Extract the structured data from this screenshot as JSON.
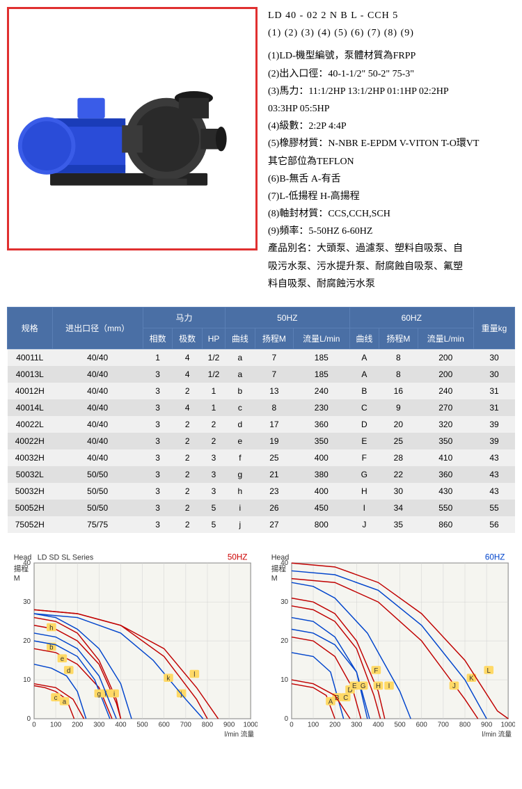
{
  "model_line1": "LD 40 - 02 2  N  B  L  -  CCH   5",
  "model_line2": "(1) (2)  (3) (4) (5) (6)  (7)   (8)    (9)",
  "desc_lines": [
    "(1)LD-機型編號，泵體材質為FRPP",
    "(2)出入口徑：40-1-1/2\"  50-2\"  75-3\"",
    "(3)馬力：11:1/2HP 13:1/2HP 01:1HP 02:2HP",
    "03:3HP 05:5HP",
    "(4)級數：2:2P 4:4P",
    "(5)橡膠材質：N-NBR E-EPDM V-VITON T-O環VT",
    "其它部位為TEFLON",
    "(6)B-無舌 A-有舌",
    "(7)L-低揚程 H-高揚程",
    "(8)軸封材質：CCS,CCH,SCH",
    "(9)頻率：5-50HZ 6-60HZ",
    "產品別名：大頭泵、過濾泵、塑料自吸泵、自",
    "吸污水泵、污水提升泵、耐腐蝕自吸泵、氟塑",
    "料自吸泵、耐腐蝕污水泵"
  ],
  "table": {
    "head_group": [
      {
        "label": "规格",
        "rowspan": 2
      },
      {
        "label": "进出口径（mm）",
        "rowspan": 2
      },
      {
        "label": "马力",
        "colspan": 3
      },
      {
        "label": "50HZ",
        "colspan": 3
      },
      {
        "label": "60HZ",
        "colspan": 3
      },
      {
        "label": "重量kg",
        "rowspan": 2
      }
    ],
    "head_sub": [
      "相数",
      "极数",
      "HP",
      "曲线",
      "扬程M",
      "流量L/min",
      "曲线",
      "扬程M",
      "流量L/min"
    ],
    "rows": [
      [
        "40011L",
        "40/40",
        "1",
        "4",
        "1/2",
        "a",
        "7",
        "185",
        "A",
        "8",
        "200",
        "30"
      ],
      [
        "40013L",
        "40/40",
        "3",
        "4",
        "1/2",
        "a",
        "7",
        "185",
        "A",
        "8",
        "200",
        "30"
      ],
      [
        "40012H",
        "40/40",
        "3",
        "2",
        "1",
        "b",
        "13",
        "240",
        "B",
        "16",
        "240",
        "31"
      ],
      [
        "40014L",
        "40/40",
        "3",
        "4",
        "1",
        "c",
        "8",
        "230",
        "C",
        "9",
        "270",
        "31"
      ],
      [
        "40022L",
        "40/40",
        "3",
        "2",
        "2",
        "d",
        "17",
        "360",
        "D",
        "20",
        "320",
        "39"
      ],
      [
        "40022H",
        "40/40",
        "3",
        "2",
        "2",
        "e",
        "19",
        "350",
        "E",
        "25",
        "350",
        "39"
      ],
      [
        "40032H",
        "40/40",
        "3",
        "2",
        "3",
        "f",
        "25",
        "400",
        "F",
        "28",
        "410",
        "43"
      ],
      [
        "50032L",
        "50/50",
        "3",
        "2",
        "3",
        "g",
        "21",
        "380",
        "G",
        "22",
        "360",
        "43"
      ],
      [
        "50032H",
        "50/50",
        "3",
        "2",
        "3",
        "h",
        "23",
        "400",
        "H",
        "30",
        "430",
        "43"
      ],
      [
        "50052H",
        "50/50",
        "3",
        "2",
        "5",
        "i",
        "26",
        "450",
        "I",
        "34",
        "550",
        "55"
      ],
      [
        "75052H",
        "75/75",
        "3",
        "2",
        "5",
        "j",
        "27",
        "800",
        "J",
        "35",
        "860",
        "56"
      ]
    ]
  },
  "chart_50": {
    "title": "LD SD SL Series",
    "hz": "50HZ",
    "ylabel1": "Head",
    "ylabel2": "揚程",
    "ylabel3": "M",
    "xlabel": "l/min 流量",
    "xlim": [
      0,
      1000
    ],
    "ylim": [
      0,
      40
    ],
    "xtick_step": 100,
    "ytick_step": 10,
    "background": "#f5f5f0",
    "grid_color": "#d0d0d0",
    "axis_color": "#333",
    "curves": [
      {
        "id": "a",
        "color": "#c00000",
        "label_pos": [
          140,
          4
        ],
        "pts": [
          [
            0,
            8.5
          ],
          [
            50,
            8
          ],
          [
            100,
            7
          ],
          [
            150,
            5
          ],
          [
            185,
            0
          ]
        ]
      },
      {
        "id": "b",
        "color": "#0044cc",
        "label_pos": [
          80,
          18
        ],
        "pts": [
          [
            0,
            14
          ],
          [
            80,
            13
          ],
          [
            150,
            11
          ],
          [
            200,
            7
          ],
          [
            240,
            0
          ]
        ]
      },
      {
        "id": "c",
        "color": "#c00000",
        "label_pos": [
          100,
          5
        ],
        "pts": [
          [
            0,
            9
          ],
          [
            100,
            8
          ],
          [
            180,
            5
          ],
          [
            230,
            0
          ]
        ]
      },
      {
        "id": "d",
        "color": "#c00000",
        "label_pos": [
          160,
          12
        ],
        "pts": [
          [
            0,
            18
          ],
          [
            100,
            17
          ],
          [
            200,
            14
          ],
          [
            300,
            8
          ],
          [
            360,
            0
          ]
        ]
      },
      {
        "id": "e",
        "color": "#0044cc",
        "label_pos": [
          130,
          15
        ],
        "pts": [
          [
            0,
            20
          ],
          [
            100,
            19
          ],
          [
            200,
            16
          ],
          [
            280,
            10
          ],
          [
            350,
            0
          ]
        ]
      },
      {
        "id": "f",
        "color": "#c00000",
        "label_pos": [
          330,
          6
        ],
        "pts": [
          [
            0,
            26
          ],
          [
            100,
            25
          ],
          [
            200,
            22
          ],
          [
            300,
            15
          ],
          [
            380,
            5
          ],
          [
            400,
            0
          ]
        ]
      },
      {
        "id": "g",
        "color": "#0044cc",
        "label_pos": [
          300,
          6
        ],
        "pts": [
          [
            0,
            22
          ],
          [
            100,
            21
          ],
          [
            200,
            18
          ],
          [
            300,
            11
          ],
          [
            380,
            0
          ]
        ]
      },
      {
        "id": "h",
        "color": "#c00000",
        "label_pos": [
          80,
          23
        ],
        "pts": [
          [
            0,
            24
          ],
          [
            100,
            23
          ],
          [
            200,
            20
          ],
          [
            300,
            14
          ],
          [
            380,
            4
          ],
          [
            400,
            0
          ]
        ]
      },
      {
        "id": "i",
        "color": "#0044cc",
        "label_pos": [
          370,
          6
        ],
        "pts": [
          [
            0,
            27
          ],
          [
            100,
            26
          ],
          [
            200,
            23
          ],
          [
            300,
            18
          ],
          [
            400,
            9
          ],
          [
            450,
            0
          ]
        ]
      },
      {
        "id": "j",
        "color": "#c00000",
        "label_pos": [
          680,
          6
        ],
        "pts": [
          [
            0,
            28
          ],
          [
            200,
            27
          ],
          [
            400,
            24
          ],
          [
            600,
            16
          ],
          [
            750,
            5
          ],
          [
            800,
            0
          ]
        ]
      },
      {
        "id": "k",
        "color": "#0044cc",
        "label_pos": [
          620,
          10
        ],
        "pts": [
          [
            0,
            27
          ],
          [
            200,
            26
          ],
          [
            400,
            22
          ],
          [
            550,
            15
          ],
          [
            700,
            5
          ],
          [
            780,
            0
          ]
        ]
      },
      {
        "id": "l",
        "color": "#c00000",
        "label_pos": [
          740,
          11
        ],
        "pts": [
          [
            0,
            28
          ],
          [
            200,
            27
          ],
          [
            400,
            24
          ],
          [
            600,
            18
          ],
          [
            750,
            8
          ],
          [
            850,
            0
          ]
        ]
      }
    ],
    "label_bg": "#ffd966"
  },
  "chart_60": {
    "hz": "60HZ",
    "ylabel1": "Head",
    "ylabel2": "揚程",
    "ylabel3": "M",
    "xlabel": "l/min 流量",
    "xlim": [
      0,
      1000
    ],
    "ylim": [
      0,
      40
    ],
    "xtick_step": 100,
    "ytick_step": 10,
    "background": "#f5f5f0",
    "grid_color": "#d0d0d0",
    "axis_color": "#333",
    "curves": [
      {
        "id": "A",
        "color": "#c00000",
        "label_pos": [
          180,
          4
        ],
        "pts": [
          [
            0,
            9
          ],
          [
            100,
            8
          ],
          [
            160,
            6
          ],
          [
            200,
            0
          ]
        ]
      },
      {
        "id": "B",
        "color": "#0044cc",
        "label_pos": [
          210,
          5
        ],
        "pts": [
          [
            0,
            17
          ],
          [
            100,
            16
          ],
          [
            180,
            12
          ],
          [
            240,
            0
          ]
        ]
      },
      {
        "id": "C",
        "color": "#c00000",
        "label_pos": [
          250,
          5
        ],
        "pts": [
          [
            0,
            10
          ],
          [
            100,
            9
          ],
          [
            200,
            6
          ],
          [
            270,
            0
          ]
        ]
      },
      {
        "id": "D",
        "color": "#c00000",
        "label_pos": [
          270,
          7
        ],
        "pts": [
          [
            0,
            21
          ],
          [
            100,
            20
          ],
          [
            200,
            16
          ],
          [
            280,
            8
          ],
          [
            320,
            0
          ]
        ]
      },
      {
        "id": "E",
        "color": "#0044cc",
        "label_pos": [
          290,
          8
        ],
        "pts": [
          [
            0,
            26
          ],
          [
            100,
            25
          ],
          [
            200,
            21
          ],
          [
            300,
            12
          ],
          [
            350,
            0
          ]
        ]
      },
      {
        "id": "F",
        "color": "#c00000",
        "label_pos": [
          390,
          12
        ],
        "pts": [
          [
            0,
            29
          ],
          [
            100,
            28
          ],
          [
            200,
            25
          ],
          [
            300,
            18
          ],
          [
            380,
            6
          ],
          [
            410,
            0
          ]
        ]
      },
      {
        "id": "G",
        "color": "#0044cc",
        "label_pos": [
          330,
          8
        ],
        "pts": [
          [
            0,
            23
          ],
          [
            100,
            22
          ],
          [
            200,
            19
          ],
          [
            300,
            12
          ],
          [
            360,
            0
          ]
        ]
      },
      {
        "id": "H",
        "color": "#c00000",
        "label_pos": [
          400,
          8
        ],
        "pts": [
          [
            0,
            31
          ],
          [
            100,
            30
          ],
          [
            200,
            27
          ],
          [
            300,
            20
          ],
          [
            400,
            7
          ],
          [
            430,
            0
          ]
        ]
      },
      {
        "id": "I",
        "color": "#0044cc",
        "label_pos": [
          450,
          8
        ],
        "pts": [
          [
            0,
            35
          ],
          [
            100,
            34
          ],
          [
            200,
            31
          ],
          [
            350,
            22
          ],
          [
            500,
            7
          ],
          [
            550,
            0
          ]
        ]
      },
      {
        "id": "J",
        "color": "#c00000",
        "label_pos": [
          750,
          8
        ],
        "pts": [
          [
            0,
            36
          ],
          [
            200,
            35
          ],
          [
            400,
            30
          ],
          [
            600,
            20
          ],
          [
            800,
            5
          ],
          [
            860,
            0
          ]
        ]
      },
      {
        "id": "K",
        "color": "#0044cc",
        "label_pos": [
          830,
          10
        ],
        "pts": [
          [
            0,
            38
          ],
          [
            200,
            37
          ],
          [
            400,
            33
          ],
          [
            600,
            24
          ],
          [
            800,
            10
          ],
          [
            900,
            0
          ]
        ]
      },
      {
        "id": "L",
        "color": "#c00000",
        "label_pos": [
          910,
          12
        ],
        "pts": [
          [
            0,
            40
          ],
          [
            200,
            39
          ],
          [
            400,
            35
          ],
          [
            600,
            27
          ],
          [
            800,
            15
          ],
          [
            950,
            2
          ],
          [
            1000,
            0
          ]
        ]
      }
    ],
    "label_bg": "#ffd966"
  }
}
